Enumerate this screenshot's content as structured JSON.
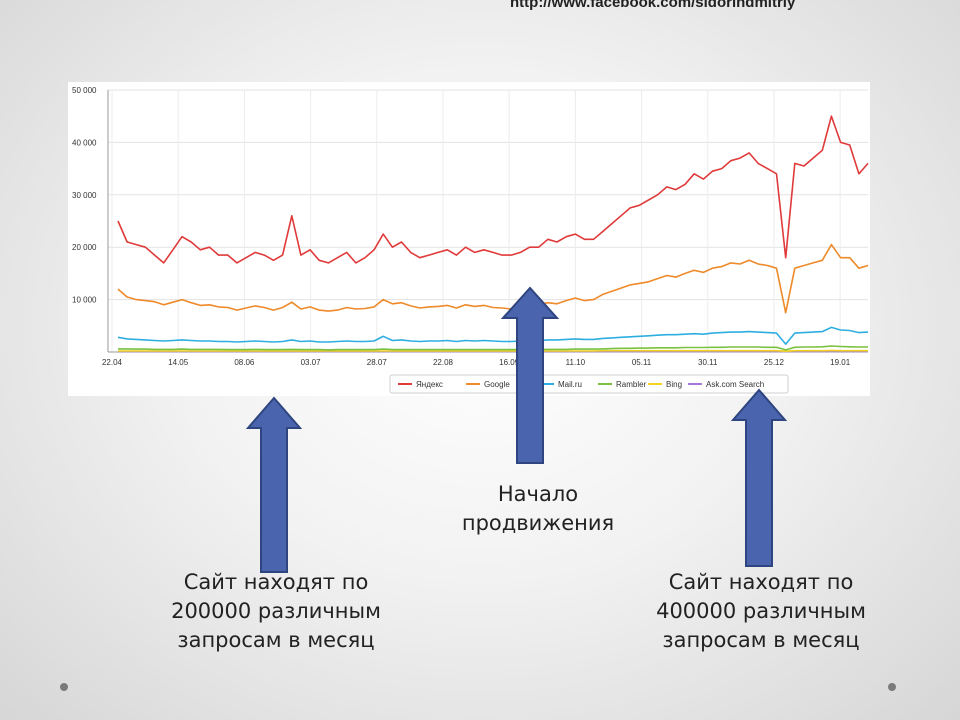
{
  "header": {
    "url": "http://www.facebook.com/sidorindmitriy"
  },
  "captions": {
    "left": [
      "Сайт находят по",
      "200000 различным",
      "запросам в месяц"
    ],
    "middle": [
      "Начало",
      "продвижения"
    ],
    "right": [
      "Сайт находят по",
      "400000 различным",
      "запросам в месяц"
    ]
  },
  "colors": {
    "arrow_fill": "#4a65ad",
    "arrow_stroke": "#2f4580",
    "dot": "#7a7a7a"
  },
  "chart_data": {
    "type": "line",
    "title": "",
    "xlabel": "",
    "ylabel": "",
    "ylim": [
      0,
      50000
    ],
    "y_ticks": [
      "10 000",
      "20 000",
      "30 000",
      "40 000",
      "50 000"
    ],
    "y_tick_values": [
      10000,
      20000,
      30000,
      40000,
      50000
    ],
    "x_ticks": [
      "22.04",
      "14.05",
      "08.06",
      "03.07",
      "28.07",
      "22.08",
      "16.09",
      "11.10",
      "05.11",
      "30.11",
      "25.12",
      "19.01"
    ],
    "legend_position": "bottom",
    "grid": true,
    "series": [
      {
        "name": "Яндекс",
        "color": "#e03a3a",
        "values": [
          25000,
          21000,
          20500,
          20000,
          18500,
          17000,
          19500,
          22000,
          21000,
          19500,
          20000,
          18500,
          18500,
          17000,
          18000,
          19000,
          18500,
          17500,
          18500,
          26000,
          18500,
          19500,
          17500,
          17000,
          18000,
          19000,
          17000,
          18000,
          19500,
          22500,
          20000,
          21000,
          19000,
          18000,
          18500,
          19000,
          19500,
          18500,
          20000,
          19000,
          19500,
          19000,
          18500,
          18500,
          19000,
          20000,
          20000,
          21500,
          21000,
          22000,
          22500,
          21500,
          21500,
          23000,
          24500,
          26000,
          27500,
          28000,
          29000,
          30000,
          31500,
          31000,
          32000,
          34000,
          33000,
          34500,
          35000,
          36500,
          37000,
          38000,
          36000,
          35000,
          34000,
          18000,
          36000,
          35500,
          37000,
          38500,
          45000,
          40000,
          39500,
          34000,
          36000
        ]
      },
      {
        "name": "Google",
        "color": "#ee8a2a",
        "values": [
          12000,
          10500,
          10000,
          9800,
          9600,
          9000,
          9500,
          10000,
          9400,
          8900,
          9000,
          8600,
          8500,
          8000,
          8400,
          8800,
          8500,
          8000,
          8500,
          9500,
          8200,
          8600,
          8000,
          7800,
          8000,
          8500,
          8200,
          8300,
          8600,
          10000,
          9200,
          9400,
          8800,
          8400,
          8600,
          8700,
          8900,
          8400,
          9000,
          8700,
          8900,
          8500,
          8400,
          8200,
          8500,
          8700,
          9000,
          9400,
          9200,
          9800,
          10300,
          9800,
          10000,
          11000,
          11600,
          12200,
          12800,
          13100,
          13400,
          14000,
          14600,
          14300,
          15000,
          15600,
          15200,
          16000,
          16300,
          17000,
          16800,
          17500,
          16800,
          16500,
          16000,
          7500,
          16000,
          16500,
          17000,
          17500,
          20500,
          18000,
          18000,
          16000,
          16500
        ]
      },
      {
        "name": "Mail.ru",
        "color": "#2eaee0",
        "values": [
          2800,
          2500,
          2400,
          2300,
          2200,
          2100,
          2200,
          2300,
          2200,
          2100,
          2100,
          2000,
          2000,
          1900,
          2000,
          2100,
          2000,
          1900,
          2000,
          2300,
          2000,
          2100,
          1900,
          1900,
          2000,
          2100,
          2000,
          2000,
          2100,
          3000,
          2200,
          2300,
          2100,
          2000,
          2100,
          2100,
          2200,
          2000,
          2200,
          2100,
          2200,
          2100,
          2000,
          2000,
          2100,
          2200,
          2200,
          2300,
          2300,
          2400,
          2500,
          2400,
          2400,
          2600,
          2700,
          2800,
          2900,
          3000,
          3100,
          3200,
          3300,
          3300,
          3400,
          3500,
          3400,
          3600,
          3700,
          3800,
          3800,
          3900,
          3800,
          3700,
          3600,
          1500,
          3600,
          3700,
          3800,
          3900,
          4700,
          4200,
          4100,
          3700,
          3800
        ]
      },
      {
        "name": "Rambler",
        "color": "#7ac142",
        "values": [
          600,
          600,
          550,
          550,
          500,
          500,
          500,
          550,
          500,
          500,
          500,
          500,
          450,
          450,
          450,
          500,
          450,
          450,
          450,
          500,
          450,
          450,
          450,
          400,
          450,
          450,
          450,
          450,
          450,
          550,
          450,
          450,
          450,
          450,
          450,
          450,
          450,
          450,
          450,
          450,
          450,
          450,
          450,
          450,
          450,
          450,
          450,
          500,
          500,
          500,
          550,
          550,
          550,
          600,
          650,
          700,
          700,
          750,
          750,
          800,
          800,
          800,
          850,
          850,
          850,
          900,
          900,
          950,
          950,
          950,
          950,
          900,
          900,
          400,
          900,
          950,
          950,
          1000,
          1150,
          1050,
          1000,
          950,
          950
        ]
      },
      {
        "name": "Bing",
        "color": "#f2d31e",
        "values": [
          200,
          200,
          200,
          200,
          200,
          200,
          200,
          200,
          200,
          200,
          200,
          200,
          200,
          200,
          200,
          200,
          200,
          200,
          200,
          200,
          200,
          200,
          200,
          200,
          200,
          200,
          200,
          200,
          200,
          200,
          200,
          200,
          200,
          200,
          200,
          200,
          200,
          200,
          200,
          200,
          200,
          200,
          200,
          200,
          200,
          200,
          200,
          200,
          200,
          200,
          200,
          200,
          200,
          250,
          250,
          250,
          250,
          250,
          250,
          250,
          250,
          250,
          250,
          250,
          250,
          250,
          250,
          250,
          250,
          250,
          250,
          250,
          250,
          150,
          250,
          250,
          250,
          250,
          300,
          250,
          250,
          250,
          250
        ]
      },
      {
        "name": "Ask.com Search",
        "color": "#a67ad8",
        "values": [
          100,
          100,
          100,
          100,
          100,
          100,
          100,
          100,
          100,
          100,
          100,
          100,
          100,
          100,
          100,
          100,
          100,
          100,
          100,
          100,
          100,
          100,
          100,
          100,
          100,
          100,
          100,
          100,
          100,
          100,
          100,
          100,
          100,
          100,
          100,
          100,
          100,
          100,
          100,
          100,
          100,
          100,
          100,
          100,
          100,
          100,
          100,
          100,
          100,
          100,
          100,
          100,
          100,
          100,
          100,
          100,
          100,
          100,
          100,
          100,
          100,
          100,
          100,
          100,
          100,
          100,
          100,
          100,
          100,
          100,
          100,
          100,
          100,
          100,
          100,
          100,
          100,
          100,
          100,
          100,
          100,
          100,
          100
        ]
      }
    ]
  }
}
